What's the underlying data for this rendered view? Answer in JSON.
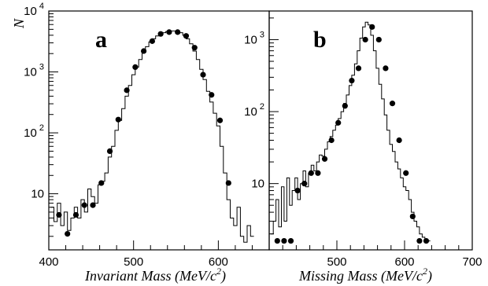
{
  "chart_data": [
    {
      "type": "scatter",
      "panel_label": "a",
      "ylabel": "N",
      "xlabel_main": "Invariant Mass (MeV/c",
      "xlabel_sup": "2",
      "xlabel_end": ")",
      "xlim": [
        400,
        660
      ],
      "ylim": [
        1.2,
        10000
      ],
      "yscale": "log",
      "xticks": [
        400,
        500,
        600
      ],
      "yticks": [
        {
          "value": 10,
          "base": "10",
          "exp": ""
        },
        {
          "value": 100,
          "base": "10",
          "exp": "2"
        },
        {
          "value": 1000,
          "base": "10",
          "exp": "3"
        },
        {
          "value": 10000,
          "base": "10",
          "exp": "4"
        }
      ],
      "series": [
        {
          "x": [
            412,
            422,
            432,
            442,
            452,
            462,
            472,
            482,
            492,
            502,
            512,
            522,
            532,
            542,
            552,
            562,
            572,
            582,
            592,
            602,
            612
          ],
          "y": [
            4.5,
            2.2,
            4.5,
            6.5,
            6.5,
            15,
            50,
            165,
            500,
            1200,
            2200,
            3200,
            4200,
            4500,
            4500,
            3900,
            2500,
            900,
            420,
            160,
            15
          ]
        }
      ],
      "histogram": {
        "x": [
          404,
          408,
          412,
          416,
          420,
          424,
          428,
          432,
          436,
          440,
          444,
          448,
          452,
          456,
          460,
          464,
          468,
          472,
          476,
          480,
          484,
          488,
          492,
          496,
          500,
          504,
          508,
          512,
          516,
          520,
          524,
          528,
          532,
          536,
          540,
          544,
          548,
          552,
          556,
          560,
          564,
          568,
          572,
          576,
          580,
          584,
          588,
          592,
          596,
          600,
          604,
          608,
          612,
          616,
          620,
          624,
          628,
          632,
          636,
          640
        ],
        "y": [
          6,
          3.5,
          7,
          3,
          5,
          2.5,
          4,
          6,
          4,
          8,
          5,
          12,
          9,
          7,
          14,
          16,
          22,
          40,
          60,
          110,
          160,
          250,
          400,
          600,
          900,
          1200,
          1600,
          2100,
          2600,
          3100,
          3500,
          3900,
          4200,
          4400,
          4600,
          4700,
          4700,
          4600,
          4400,
          4000,
          3500,
          2900,
          2200,
          1600,
          1100,
          750,
          480,
          320,
          210,
          130,
          60,
          22,
          8,
          4,
          3,
          6,
          2,
          1.6,
          3,
          2
        ]
      }
    },
    {
      "type": "scatter",
      "panel_label": "b",
      "xlabel_main": "Missing Mass (MeV/c",
      "xlabel_sup": "2",
      "xlabel_end": ")",
      "xlim": [
        400,
        700
      ],
      "ylim": [
        1.2,
        2500
      ],
      "yscale": "log",
      "xticks": [
        500,
        600,
        700
      ],
      "yticks": [
        {
          "value": 10,
          "base": "10",
          "exp": ""
        },
        {
          "value": 100,
          "base": "10",
          "exp": "2"
        },
        {
          "value": 1000,
          "base": "10",
          "exp": "3"
        }
      ],
      "series": [
        {
          "x": [
            412,
            422,
            432,
            442,
            452,
            462,
            472,
            482,
            492,
            502,
            512,
            522,
            532,
            542,
            552,
            562,
            572,
            582,
            592,
            602,
            612,
            622,
            632
          ],
          "y": [
            1.6,
            1.6,
            1.6,
            8,
            10,
            14,
            14,
            22,
            40,
            70,
            120,
            270,
            400,
            1000,
            1500,
            1000,
            400,
            130,
            40,
            14,
            3.5,
            1.6,
            1.6
          ]
        }
      ],
      "histogram": {
        "x": [
          404,
          408,
          412,
          416,
          420,
          424,
          428,
          432,
          436,
          440,
          444,
          448,
          452,
          456,
          460,
          464,
          468,
          472,
          476,
          480,
          484,
          488,
          492,
          496,
          500,
          504,
          508,
          512,
          516,
          520,
          524,
          528,
          532,
          536,
          540,
          544,
          548,
          552,
          556,
          560,
          564,
          568,
          572,
          576,
          580,
          584,
          588,
          592,
          596,
          600,
          604,
          608,
          612,
          616,
          620,
          624,
          628,
          632,
          636
        ],
        "y": [
          2,
          3,
          6,
          2.5,
          9,
          3,
          12,
          5,
          8,
          12,
          6,
          10,
          15,
          9,
          14,
          18,
          15,
          20,
          25,
          24,
          30,
          38,
          45,
          55,
          65,
          80,
          100,
          130,
          170,
          230,
          320,
          460,
          700,
          1050,
          1500,
          1750,
          1600,
          1150,
          700,
          400,
          240,
          150,
          90,
          55,
          35,
          28,
          20,
          16,
          12,
          9,
          8,
          6,
          4,
          3,
          2.5,
          2,
          1.8,
          1.6,
          1.6
        ]
      }
    }
  ]
}
